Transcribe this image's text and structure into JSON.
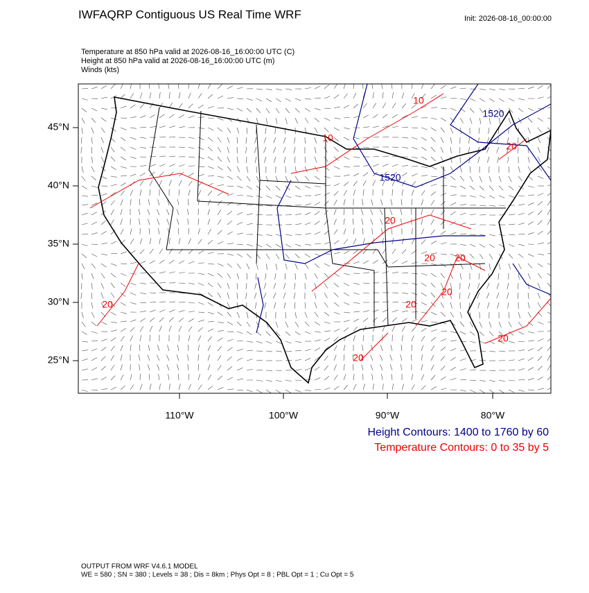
{
  "header": {
    "title": "IWFAQRP Contiguous US Real Time WRF",
    "init": "Init: 2026-08-16_00:00:00",
    "fields": [
      "Temperature at 850 hPa valid at 2026-08-16_16:00:00 UTC   (C)",
      "Height at 850 hPa valid at 2026-08-16_16:00:00 UTC   (m)",
      "Winds   (kts)"
    ]
  },
  "map": {
    "lat_labels": [
      "45°N",
      "40°N",
      "35°N",
      "30°N",
      "25°N"
    ],
    "lon_labels": [
      "110°W",
      "100°W",
      "90°W",
      "80°W"
    ],
    "height_contour_labels": [
      "1520",
      "1520"
    ],
    "temperature_contour_labels": [
      "10",
      "10",
      "20",
      "20",
      "20",
      "20",
      "20",
      "20",
      "20",
      "20",
      "20"
    ]
  },
  "legend": [
    "Height Contours: 1400 to 1760 by 60",
    "Temperature Contours: 0 to 35 by 5"
  ],
  "footer": [
    "OUTPUT FROM WRF V4.6.1 MODEL",
    "WE = 580 ; SN = 380 ; Levels = 38 ; Dis = 8km ; Phys Opt = 8 ; PBL Opt = 1 ; Cu Opt = 5"
  ]
}
